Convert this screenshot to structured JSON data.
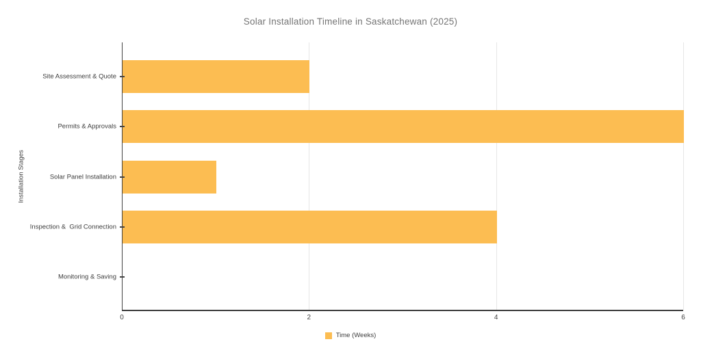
{
  "chart_data": {
    "type": "bar",
    "orientation": "horizontal",
    "title": "Solar Installation Timeline in Saskatchewan (2025)",
    "categories": [
      "Site Assessment & Quote",
      "Permits & Approvals",
      "Solar Panel Installation",
      "Inspection &  Grid Connection",
      "Monitoring & Saving"
    ],
    "series": [
      {
        "name": "Time (Weeks)",
        "values": [
          2,
          6,
          1,
          4,
          0
        ]
      }
    ],
    "xlabel": "",
    "ylabel": "Installation Stages",
    "xlim": [
      0,
      6
    ],
    "x_ticks": [
      0,
      2,
      4,
      6
    ],
    "grid": "vertical",
    "legend_position": "bottom",
    "legend": {
      "entries": [
        {
          "label": "Time (Weeks)",
          "color": "#FCBD52"
        }
      ]
    },
    "colors": {
      "bar": "#FCBD52",
      "gridline": "#E6E6E6",
      "axis": "#424242",
      "title_text": "#757575",
      "tick_text": "#3C3C3C"
    }
  }
}
